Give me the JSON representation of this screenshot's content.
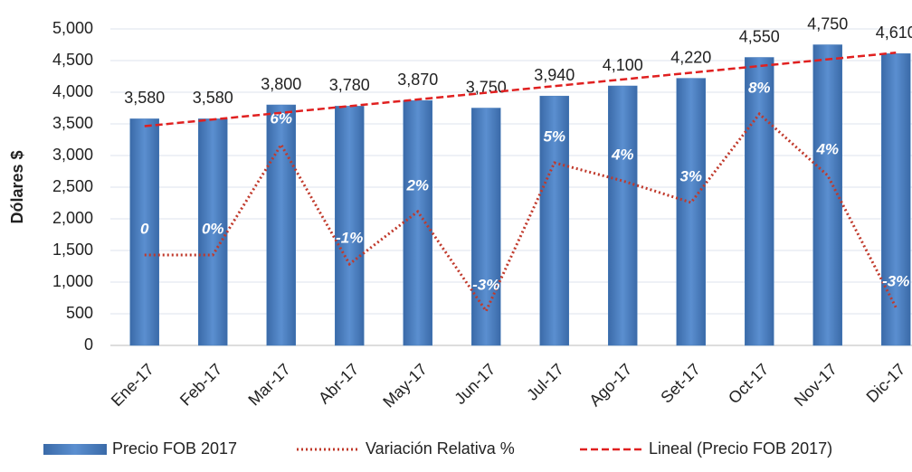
{
  "chart_data": {
    "type": "bar",
    "y_axis_label": "Dólares $",
    "categories": [
      "Ene-17",
      "Feb-17",
      "Mar-17",
      "Abr-17",
      "May-17",
      "Jun-17",
      "Jul-17",
      "Ago-17",
      "Set-17",
      "Oct-17",
      "Nov-17",
      "Dic-17"
    ],
    "series": [
      {
        "name": "Precio FOB 2017",
        "color": "#4a7ebb",
        "type": "bar",
        "values": [
          3580,
          3580,
          3800,
          3780,
          3870,
          3750,
          3940,
          4100,
          4220,
          4550,
          4750,
          4610
        ],
        "value_labels": [
          "3,580",
          "3,580",
          "3,800",
          "3,780",
          "3,870",
          "3,750",
          "3,940",
          "4,100",
          "4,220",
          "4,550",
          "4,750",
          "4,610"
        ]
      },
      {
        "name": "Variación Relativa %",
        "color": "#c0392b",
        "type": "line",
        "axis": "y2",
        "values": [
          0,
          0,
          6.1,
          -0.5,
          2.4,
          -3.1,
          5.1,
          4.1,
          2.9,
          7.8,
          4.4,
          -2.9
        ],
        "value_labels": [
          "0",
          "0%",
          "6%",
          "-1%",
          "2%",
          "-3%",
          "5%",
          "4%",
          "3%",
          "8%",
          "4%",
          "-3%"
        ]
      }
    ],
    "trendline": {
      "name": "Lineal (Precio FOB 2017)",
      "color": "#e02020",
      "of_series": 0
    },
    "ylim": [
      0,
      5000
    ],
    "yticks": [
      0,
      500,
      {
        "value": 1000,
        "label": "1,000"
      },
      {
        "value": 1500,
        "label": "1,500"
      },
      {
        "value": 2000,
        "label": "2,000"
      },
      {
        "value": 2500,
        "label": "2,500"
      },
      {
        "value": 3000,
        "label": "3,000"
      },
      {
        "value": 3500,
        "label": "3,500"
      },
      {
        "value": 4000,
        "label": "4,000"
      },
      {
        "value": 4500,
        "label": "4,500"
      },
      {
        "value": 5000,
        "label": "5,000"
      }
    ],
    "y2lim": [
      -5,
      12.5
    ],
    "grid": true,
    "legend": "bottom"
  }
}
